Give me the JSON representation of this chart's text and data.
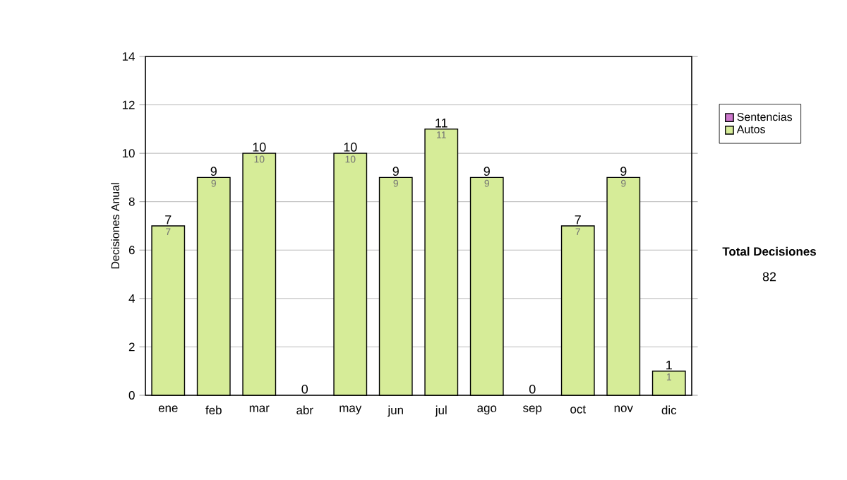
{
  "chart_data": {
    "type": "bar",
    "stacked": true,
    "ylabel": "Decisiones Anual",
    "categories": [
      "ene",
      "feb",
      "mar",
      "abr",
      "may",
      "jun",
      "jul",
      "ago",
      "sep",
      "oct",
      "nov",
      "dic"
    ],
    "series": [
      {
        "name": "Sentencias",
        "color": "#cc77cc",
        "values": [
          0,
          0,
          0,
          0,
          0,
          0,
          0,
          0,
          0,
          0,
          0,
          0
        ]
      },
      {
        "name": "Autos",
        "color": "#d6ec98",
        "values": [
          7,
          9,
          10,
          0,
          10,
          9,
          11,
          9,
          0,
          7,
          9,
          1
        ],
        "value_labels": [
          "7",
          "9",
          "10",
          null,
          "10",
          "9",
          "11",
          "9",
          null,
          "7",
          "9",
          "1"
        ]
      }
    ],
    "totals": [
      "7",
      "9",
      "10",
      "0",
      "10",
      "9",
      "11",
      "9",
      "0",
      "7",
      "9",
      "1"
    ],
    "ylim": [
      0,
      14
    ],
    "yticks": [
      0,
      2,
      4,
      6,
      8,
      10,
      12,
      14
    ],
    "grid": "y",
    "legend": "right",
    "annotations": [
      "Total Decisiones",
      "82"
    ]
  }
}
